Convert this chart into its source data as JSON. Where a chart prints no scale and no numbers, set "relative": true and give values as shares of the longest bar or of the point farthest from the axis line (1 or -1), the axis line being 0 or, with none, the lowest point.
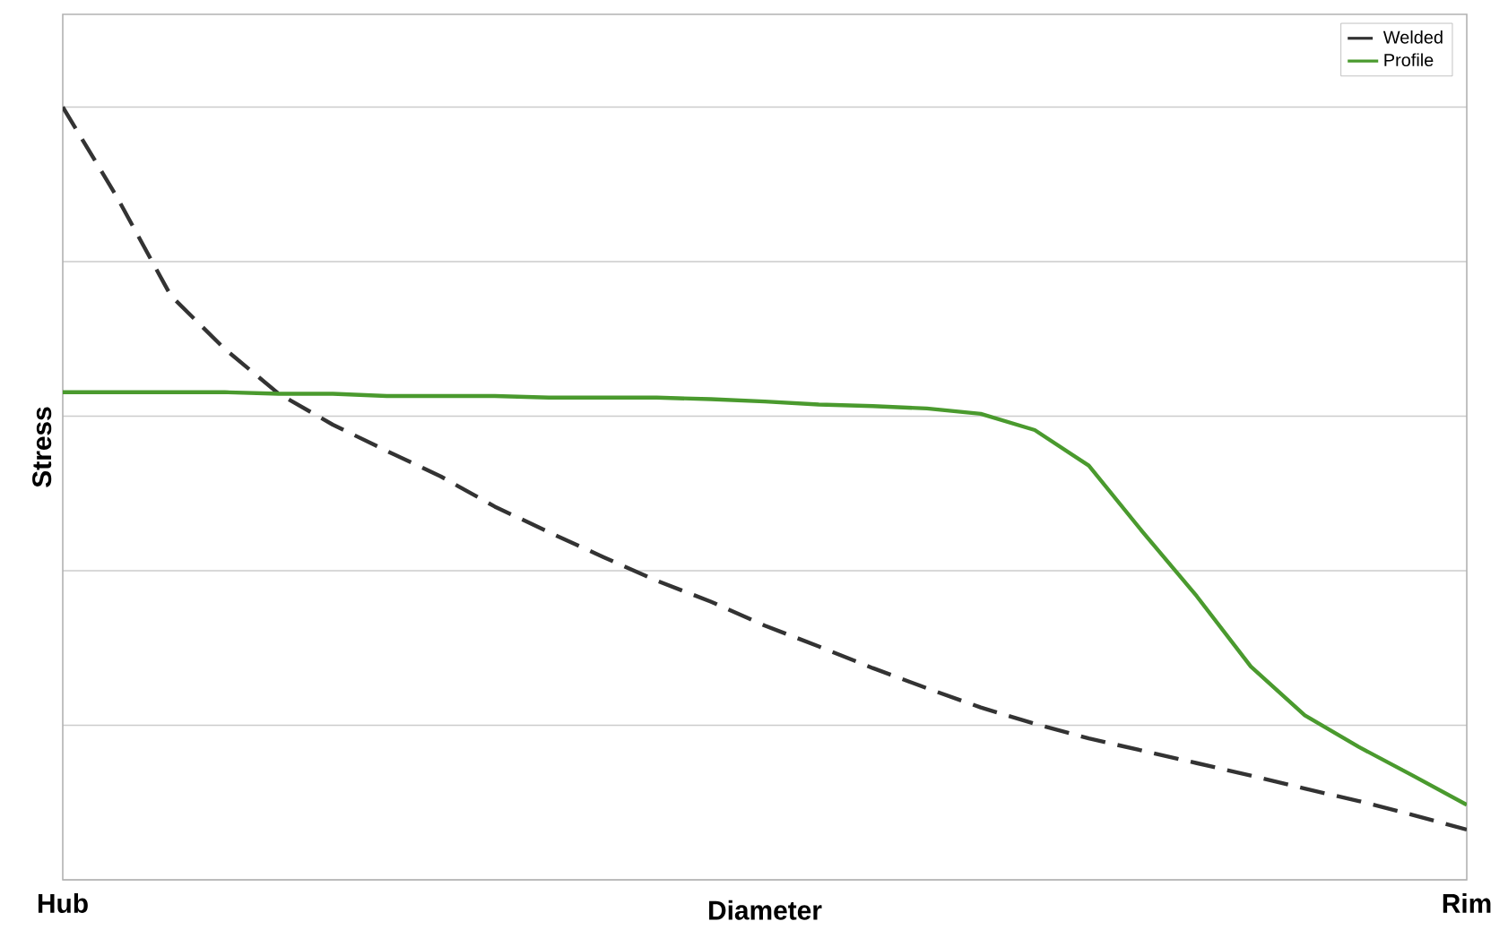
{
  "chart_data": {
    "type": "line",
    "xlabel": "Diameter",
    "ylabel": "Stress",
    "relative": true,
    "categories": [
      "Hub",
      null,
      null,
      null,
      null,
      null,
      null,
      null,
      null,
      null,
      null,
      null,
      null,
      null,
      null,
      null,
      null,
      null,
      null,
      null,
      null,
      null,
      null,
      null,
      null,
      null,
      "Rim"
    ],
    "grid": "y",
    "legend": "top right",
    "tick_labels": "x",
    "series": [
      {
        "name": "Welded",
        "color": "#333333",
        "line_style": "dashed",
        "values": [
          1.0,
          0.884,
          0.756,
          0.687,
          0.629,
          0.589,
          0.555,
          0.522,
          0.483,
          0.45,
          0.418,
          0.387,
          0.36,
          0.329,
          0.302,
          0.274,
          0.248,
          0.223,
          0.202,
          0.183,
          0.167,
          0.151,
          0.135,
          0.118,
          0.102,
          0.084,
          0.065
        ]
      },
      {
        "name": "Profile",
        "color": "#4a9a2e",
        "line_style": "solid",
        "values": [
          0.631,
          0.631,
          0.631,
          0.631,
          0.629,
          0.629,
          0.626,
          0.626,
          0.626,
          0.624,
          0.624,
          0.624,
          0.622,
          0.619,
          0.615,
          0.613,
          0.61,
          0.603,
          0.582,
          0.536,
          0.45,
          0.367,
          0.276,
          0.213,
          0.172,
          0.135,
          0.097
        ]
      }
    ]
  }
}
